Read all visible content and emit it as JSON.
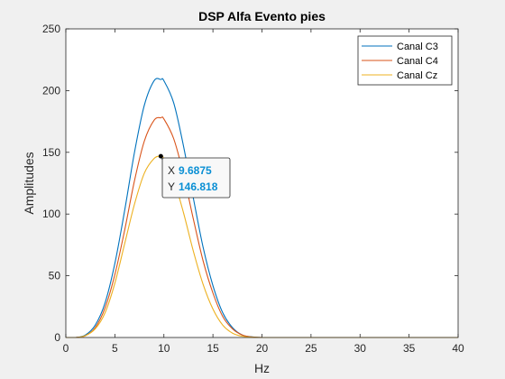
{
  "chart_data": {
    "type": "line",
    "title": "DSP Alfa Evento pies",
    "xlabel": "Hz",
    "ylabel": "Amplitudes",
    "xlim": [
      0,
      40
    ],
    "ylim": [
      0,
      250
    ],
    "xticks": [
      0,
      5,
      10,
      15,
      20,
      25,
      30,
      35,
      40
    ],
    "yticks": [
      0,
      50,
      100,
      150,
      200,
      250
    ],
    "grid": false,
    "legend_position": "top-right",
    "x": [
      0,
      1,
      2,
      3,
      4,
      5,
      6,
      7,
      8,
      9,
      9.6875,
      10,
      11,
      12,
      13,
      14,
      15,
      16,
      17,
      18,
      19,
      20,
      22,
      25,
      30,
      35,
      40
    ],
    "series": [
      {
        "name": "Canal C3",
        "color": "#0072bd",
        "values": [
          0,
          0,
          2,
          10,
          28,
          60,
          103,
          150,
          188,
          208,
          209,
          208,
          190,
          155,
          113,
          73,
          42,
          20,
          8,
          2,
          0.5,
          0,
          0,
          0,
          0,
          0,
          0
        ]
      },
      {
        "name": "Canal C4",
        "color": "#d95319",
        "values": [
          0,
          0,
          1.5,
          8,
          24,
          51,
          87,
          127,
          159,
          176,
          178,
          177,
          161,
          132,
          96,
          62,
          36,
          17,
          7,
          2,
          0.4,
          0,
          0,
          0,
          0,
          0,
          0
        ]
      },
      {
        "name": "Canal Cz",
        "color": "#edb120",
        "values": [
          0,
          0,
          1.5,
          7,
          20,
          44,
          76,
          108,
          133,
          145,
          146.818,
          145,
          128,
          101,
          70,
          43,
          23,
          10,
          3.5,
          1,
          0.2,
          0,
          0,
          0,
          0,
          0,
          0
        ]
      }
    ],
    "datatip": {
      "series": "Canal Cz",
      "x": 9.6875,
      "y": 146.818,
      "x_label": "X",
      "y_label": "Y",
      "x_text": "9.6875",
      "y_text": "146.818"
    }
  }
}
